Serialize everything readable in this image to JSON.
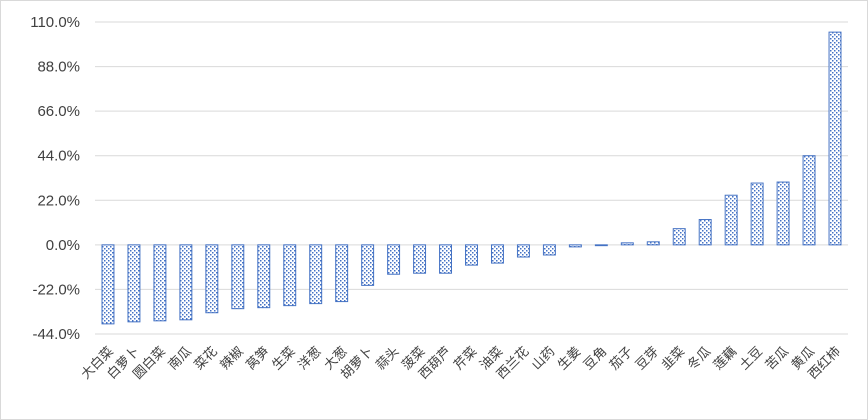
{
  "chart_data": {
    "type": "bar",
    "categories": [
      "大白菜",
      "白萝卜",
      "圆白菜",
      "南瓜",
      "菜花",
      "辣椒",
      "莴笋",
      "生菜",
      "洋葱",
      "大葱",
      "胡萝卜",
      "蒜头",
      "菠菜",
      "西葫芦",
      "芹菜",
      "油菜",
      "西兰花",
      "山药",
      "生姜",
      "豆角",
      "茄子",
      "豆芽",
      "韭菜",
      "冬瓜",
      "莲藕",
      "土豆",
      "苦瓜",
      "黄瓜",
      "西红柿"
    ],
    "values": [
      -39.0,
      -38.0,
      -37.5,
      -37.0,
      -33.5,
      -31.5,
      -31.0,
      -30.0,
      -29.0,
      -28.0,
      -20.0,
      -14.5,
      -14.0,
      -14.0,
      -10.0,
      -9.0,
      -6.0,
      -5.0,
      -1.0,
      0.0,
      1.0,
      1.5,
      8.0,
      12.5,
      24.5,
      30.5,
      31.0,
      44.0,
      105.0
    ],
    "yticks": [
      "110.0%",
      "88.0%",
      "66.0%",
      "44.0%",
      "22.0%",
      "0.0%",
      "-22.0%",
      "-44.0%"
    ],
    "ylim": [
      -44,
      110
    ],
    "grid": true,
    "legend": "none",
    "colors": {
      "bar_stroke": "#4472c4",
      "pattern": "#4472c4",
      "grid": "#d9d9d9",
      "text": "#404040"
    }
  }
}
